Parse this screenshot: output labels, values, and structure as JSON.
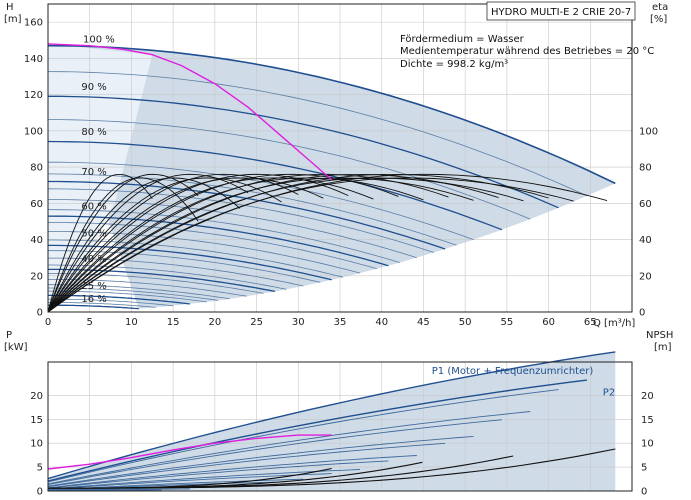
{
  "chart_data": [
    {
      "type": "line",
      "title_box": "HYDRO MULTI-E 2 CRIE 20-7",
      "info_lines": [
        "Fördermedium = Wasser",
        "Medientemperatur während des Betriebes = 20 °C",
        "Dichte = 998.2 kg/m³"
      ],
      "y_left_label": [
        "H",
        "[m]"
      ],
      "y_right_label": [
        "eta",
        "[%]"
      ],
      "x_unit_label": "Q [m³/h]",
      "xlim": [
        0,
        70
      ],
      "ylim_left": [
        0,
        170
      ],
      "ylim_right": [
        0,
        170
      ],
      "x_ticks": [
        0,
        5,
        10,
        15,
        20,
        25,
        30,
        35,
        40,
        45,
        50,
        55,
        60,
        65
      ],
      "y_ticks_left": [
        0,
        20,
        40,
        60,
        80,
        100,
        120,
        140,
        160
      ],
      "y_ticks_right": [
        0,
        20,
        40,
        60,
        80,
        100
      ],
      "grid": true,
      "speed_labels": [
        {
          "text": "100 %",
          "speed": 1.0,
          "x": 4.2,
          "y": 147
        },
        {
          "text": "90 %",
          "speed": 0.9,
          "x": 4.0,
          "y": 121
        },
        {
          "text": "80 %",
          "speed": 0.8,
          "x": 4.0,
          "y": 96
        },
        {
          "text": "70 %",
          "speed": 0.7,
          "x": 4.0,
          "y": 74
        },
        {
          "text": "60 %",
          "speed": 0.6,
          "x": 4.0,
          "y": 55
        },
        {
          "text": "50 %",
          "speed": 0.5,
          "x": 4.0,
          "y": 40
        },
        {
          "text": "40 %",
          "speed": 0.4,
          "x": 4.0,
          "y": 26
        },
        {
          "text": "25 %",
          "speed": 0.25,
          "x": 4.0,
          "y": 11
        },
        {
          "text": "16 %",
          "speed": 0.16,
          "x": 4.0,
          "y": 4
        }
      ],
      "pump_model": {
        "h0": 147,
        "qmax_100": 68,
        "h_end_100": 71
      },
      "fine_speeds": [
        0.95,
        0.85,
        0.75,
        0.72,
        0.68,
        0.65,
        0.62,
        0.58,
        0.55,
        0.52,
        0.48,
        0.45,
        0.42,
        0.38,
        0.35,
        0.32,
        0.3,
        0.28,
        0.22,
        0.19
      ],
      "eta_curves": [
        {
          "peak": 76,
          "qbest": 8.5,
          "qend": 12.5
        },
        {
          "peak": 76,
          "qbest": 12.5,
          "qend": 18
        },
        {
          "peak": 76,
          "qbest": 17,
          "qend": 24
        },
        {
          "peak": 76,
          "qbest": 21,
          "qend": 30
        },
        {
          "peak": 76,
          "qbest": 25,
          "qend": 36
        },
        {
          "peak": 76,
          "qbest": 29,
          "qend": 42
        },
        {
          "peak": 76,
          "qbest": 33,
          "qend": 48
        },
        {
          "peak": 76,
          "qbest": 37,
          "qend": 54
        },
        {
          "peak": 76,
          "qbest": 41,
          "qend": 60
        },
        {
          "peak": 76,
          "qbest": 45,
          "qend": 67
        },
        {
          "peak": 74,
          "qbest": 11,
          "qend": 18
        },
        {
          "peak": 74,
          "qbest": 15,
          "qend": 23
        },
        {
          "peak": 74,
          "qbest": 19,
          "qend": 28
        },
        {
          "peak": 74,
          "qbest": 23,
          "qend": 33
        },
        {
          "peak": 74,
          "qbest": 27,
          "qend": 39
        },
        {
          "peak": 74,
          "qbest": 31,
          "qend": 45
        },
        {
          "peak": 74,
          "qbest": 35,
          "qend": 51
        },
        {
          "peak": 74,
          "qbest": 39,
          "qend": 57
        },
        {
          "peak": 74,
          "qbest": 43,
          "qend": 63
        }
      ],
      "magenta_curve": [
        [
          0,
          148
        ],
        [
          5,
          147
        ],
        [
          9,
          145
        ],
        [
          12.5,
          142
        ],
        [
          16,
          136
        ],
        [
          20,
          126
        ],
        [
          24,
          113
        ],
        [
          28,
          97
        ],
        [
          31,
          85
        ],
        [
          33,
          77
        ],
        [
          34,
          73
        ]
      ]
    },
    {
      "type": "line",
      "y_left_label": [
        "P",
        "[kW]"
      ],
      "y_right_label": [
        "NPSH",
        "[m]"
      ],
      "xlim": [
        0,
        70
      ],
      "ylim_left": [
        0,
        27
      ],
      "ylim_right": [
        0,
        27
      ],
      "y_ticks_left": [
        0,
        5,
        10,
        15,
        20
      ],
      "y_ticks_right": [
        0,
        5,
        10,
        15,
        20
      ],
      "grid": true,
      "series_labels": [
        {
          "text": "P1 (Motor + Frequenzumrichter)",
          "x": 46,
          "y": 24.5
        },
        {
          "text": "P2",
          "x": 66.5,
          "y": 20
        }
      ],
      "magenta_p": [
        [
          0,
          4.6
        ],
        [
          5,
          5.6
        ],
        [
          10,
          7.0
        ],
        [
          15,
          8.6
        ],
        [
          20,
          10.0
        ],
        [
          25,
          11.0
        ],
        [
          30,
          11.7
        ],
        [
          34,
          11.7
        ]
      ]
    }
  ]
}
